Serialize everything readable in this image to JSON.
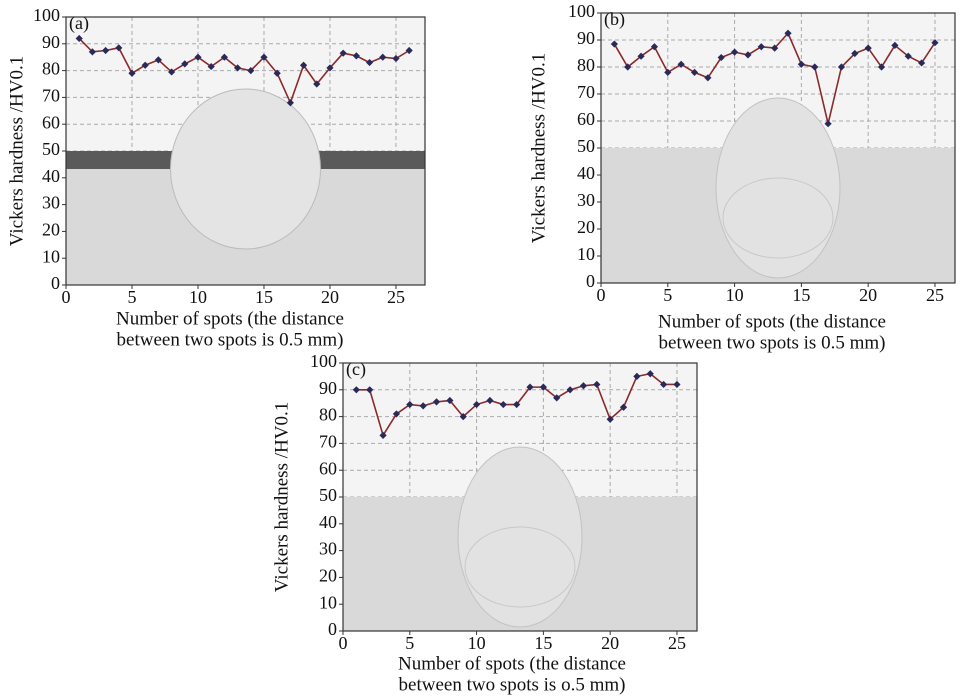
{
  "chart_data": [
    {
      "type": "line",
      "panel_label": "(a)",
      "ylabel": "Vickers hardness /HV0.1",
      "xlabel": [
        "Number of spots (the distance",
        "between two spots is 0.5 mm)"
      ],
      "x": [
        1,
        2,
        3,
        4,
        5,
        6,
        7,
        8,
        9,
        10,
        11,
        12,
        13,
        14,
        15,
        16,
        17,
        18,
        19,
        20,
        21,
        22,
        23,
        24,
        25,
        26
      ],
      "series": [
        {
          "color": "#8b2a2a",
          "marker_color": "#2a2a5a",
          "values": [
            92,
            87,
            87.5,
            88.5,
            79,
            82,
            84,
            79.5,
            82.5,
            85,
            81.5,
            85,
            81,
            80,
            85,
            79,
            68,
            82,
            75,
            81,
            86.5,
            85.5,
            83,
            85,
            84.5,
            87.5
          ]
        }
      ],
      "xlim": [
        0,
        27.2
      ],
      "xticks": [
        0,
        5,
        10,
        15,
        20,
        25
      ],
      "ylim": [
        0,
        100
      ],
      "yticks": [
        0,
        10,
        20,
        30,
        40,
        50,
        60,
        70,
        80,
        90,
        100
      ],
      "grid": true
    },
    {
      "type": "line",
      "panel_label": "(b)",
      "ylabel": "Vickers hardness /HV0.1",
      "xlabel": [
        "Number of spots (the distance",
        "between two spots is 0.5 mm)"
      ],
      "x": [
        1,
        2,
        3,
        4,
        5,
        6,
        7,
        8,
        9,
        10,
        11,
        12,
        13,
        14,
        15,
        16,
        17,
        18,
        19,
        20,
        21,
        22,
        23,
        24,
        25
      ],
      "series": [
        {
          "color": "#8b2a2a",
          "marker_color": "#2a2a5a",
          "values": [
            88.5,
            80,
            84,
            87.5,
            78,
            81,
            78,
            76,
            83.5,
            85.5,
            84.5,
            87.5,
            87,
            92.5,
            81,
            80,
            59,
            80,
            85,
            87,
            80,
            88,
            84,
            81.5,
            89
          ]
        }
      ],
      "xlim": [
        0,
        26.5
      ],
      "xticks": [
        0,
        5,
        10,
        15,
        20,
        25
      ],
      "ylim": [
        0,
        100
      ],
      "yticks": [
        0,
        10,
        20,
        30,
        40,
        50,
        60,
        70,
        80,
        90,
        100
      ],
      "grid": true
    },
    {
      "type": "line",
      "panel_label": "(c)",
      "ylabel": "Vickers hardness /HV0.1",
      "xlabel": [
        "Number of spots (the distance",
        "between two spots is o.5 mm)"
      ],
      "x": [
        1,
        2,
        3,
        4,
        5,
        6,
        7,
        8,
        9,
        10,
        11,
        12,
        13,
        14,
        15,
        16,
        17,
        18,
        19,
        20,
        21,
        22,
        23,
        24,
        25
      ],
      "series": [
        {
          "color": "#8b2a2a",
          "marker_color": "#2a2a5a",
          "values": [
            90,
            90,
            73,
            81,
            84.5,
            84,
            85.5,
            86,
            80,
            84.5,
            86,
            84.5,
            84.5,
            91,
            91,
            87,
            90,
            91.5,
            92,
            79,
            83.5,
            95,
            96,
            92,
            92
          ]
        }
      ],
      "xlim": [
        0,
        26.5
      ],
      "xticks": [
        0,
        5,
        10,
        15,
        20,
        25
      ],
      "ylim": [
        0,
        100
      ],
      "yticks": [
        0,
        10,
        20,
        30,
        40,
        50,
        60,
        70,
        80,
        90,
        100
      ],
      "grid": true
    }
  ]
}
